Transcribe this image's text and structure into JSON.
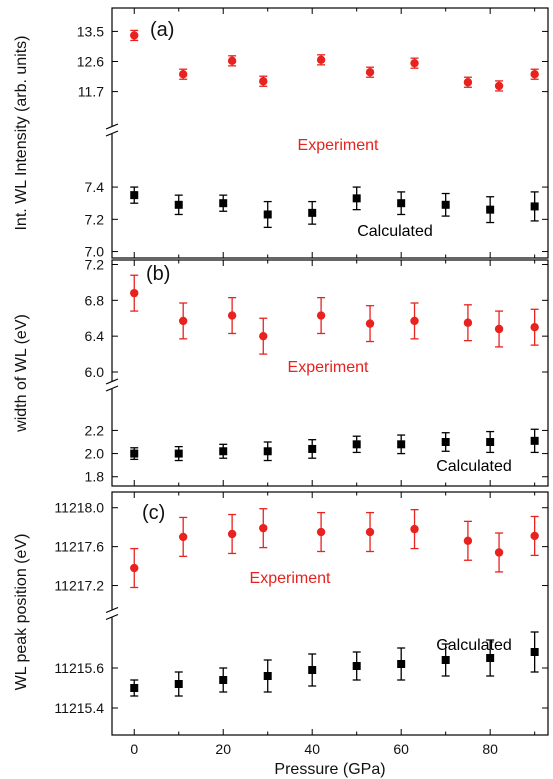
{
  "chart_data": {
    "type": "scatter",
    "xlabel": "Pressure (GPa)",
    "xlim": [
      -5,
      93
    ],
    "xticks": [
      0,
      20,
      40,
      60,
      80
    ],
    "colors": {
      "experiment": "#e8221e",
      "calculated": "#000000"
    },
    "panels": [
      {
        "tag": "(a)",
        "ylabel": "Int. WL Intensity (arb. units)",
        "top": {
          "ylim": [
            11.15,
            14.2
          ],
          "yticks": [
            "13.5",
            "12.6",
            "11.7"
          ],
          "series_label": "Experiment",
          "series": {
            "name": "Experiment",
            "marker": "circle",
            "x": [
              0,
              11,
              22,
              29,
              42,
              53,
              63,
              75,
              82,
              90
            ],
            "y": [
              13.38,
              12.22,
              12.62,
              12.01,
              12.65,
              12.28,
              12.55,
              11.98,
              11.87,
              12.22
            ],
            "err": [
              0.15,
              0.15,
              0.15,
              0.15,
              0.15,
              0.15,
              0.15,
              0.15,
              0.15,
              0.15
            ]
          }
        },
        "bottom": {
          "ylim": [
            6.96,
            7.63
          ],
          "yticks": [
            "7.4",
            "7.2",
            "7.0"
          ],
          "series_label": "Calculated",
          "series": {
            "name": "Calculated",
            "marker": "square",
            "x": [
              0,
              10,
              20,
              30,
              40,
              50,
              60,
              70,
              80,
              90
            ],
            "y": [
              7.35,
              7.29,
              7.3,
              7.23,
              7.24,
              7.33,
              7.3,
              7.29,
              7.26,
              7.28
            ],
            "err": [
              0.05,
              0.06,
              0.05,
              0.08,
              0.07,
              0.07,
              0.07,
              0.07,
              0.08,
              0.09
            ]
          }
        }
      },
      {
        "tag": "(b)",
        "ylabel": "width of WL (eV)",
        "top": {
          "ylim": [
            6.0,
            7.25
          ],
          "yticks": [
            "7.2",
            "6.8",
            "6.4",
            "6.0"
          ],
          "series_label": "Experiment",
          "series": {
            "name": "Experiment",
            "marker": "circle",
            "x": [
              0,
              11,
              22,
              29,
              42,
              53,
              63,
              75,
              82,
              90
            ],
            "y": [
              6.88,
              6.57,
              6.63,
              6.4,
              6.63,
              6.54,
              6.57,
              6.55,
              6.48,
              6.5
            ],
            "err": [
              0.2,
              0.2,
              0.2,
              0.2,
              0.2,
              0.2,
              0.2,
              0.2,
              0.2,
              0.2
            ]
          }
        },
        "bottom": {
          "ylim": [
            1.72,
            2.48
          ],
          "yticks": [
            "2.2",
            "2.0",
            "1.8"
          ],
          "series_label": "Calculated",
          "series": {
            "name": "Calculated",
            "marker": "square",
            "x": [
              0,
              10,
              20,
              30,
              40,
              50,
              60,
              70,
              80,
              90
            ],
            "y": [
              2.0,
              2.0,
              2.02,
              2.02,
              2.04,
              2.08,
              2.08,
              2.1,
              2.1,
              2.11
            ],
            "err": [
              0.05,
              0.06,
              0.06,
              0.08,
              0.08,
              0.07,
              0.08,
              0.08,
              0.09,
              0.1
            ]
          }
        }
      },
      {
        "tag": "(c)",
        "ylabel": "WL peak position (eV)",
        "top": {
          "ylim": [
            11217.0,
            11218.1
          ],
          "yticks": [
            "11218.0",
            "11217.6",
            "11217.2"
          ],
          "series_label": "Experiment",
          "series": {
            "name": "Experiment",
            "marker": "circle",
            "x": [
              0,
              11,
              22,
              29,
              42,
              53,
              63,
              75,
              82,
              90
            ],
            "y": [
              11217.38,
              11217.7,
              11217.73,
              11217.79,
              11217.75,
              11217.75,
              11217.78,
              11217.66,
              11217.54,
              11217.71
            ],
            "err": [
              0.2,
              0.2,
              0.2,
              0.2,
              0.2,
              0.2,
              0.2,
              0.2,
              0.2,
              0.2
            ]
          }
        },
        "bottom": {
          "ylim": [
            11215.3,
            11215.83
          ],
          "yticks": [
            "11215.6",
            "11215.4"
          ],
          "series_label": "Calculated",
          "series": {
            "name": "Calculated",
            "marker": "square",
            "x": [
              0,
              10,
              20,
              30,
              40,
              50,
              60,
              70,
              80,
              90
            ],
            "y": [
              11215.5,
              11215.52,
              11215.54,
              11215.56,
              11215.59,
              11215.61,
              11215.62,
              11215.64,
              11215.65,
              11215.68
            ],
            "err": [
              0.04,
              0.06,
              0.06,
              0.08,
              0.08,
              0.07,
              0.08,
              0.08,
              0.09,
              0.1
            ]
          }
        }
      }
    ]
  }
}
